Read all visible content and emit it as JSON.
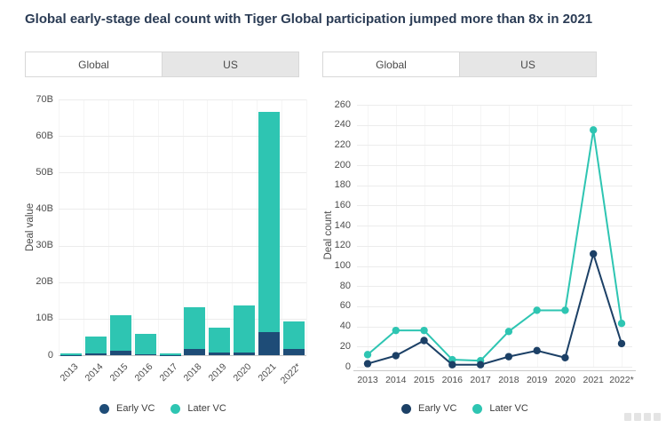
{
  "title": "Global early-stage deal count with Tiger Global participation jumped more than 8x in 2021",
  "tabs": {
    "options": [
      "Global",
      "US"
    ],
    "selected": "Global"
  },
  "legend": {
    "early_label": "Early VC",
    "later_label": "Later VC"
  },
  "colors": {
    "early_vc": "#1E4C77",
    "early_vc_line": "#1C4066",
    "later_vc": "#2EC5B2",
    "title_text": "#2B3C55",
    "axis_text": "#4D4D4D",
    "grid_line": "#ECECEC",
    "axis_line": "#C8C8C8",
    "inactive_tab_bg": "#E6E6E6",
    "tab_border": "#D8D8D8"
  },
  "chart_data": [
    {
      "type": "bar",
      "stacked": true,
      "tab_selected": "Global",
      "ylabel": "Deal value",
      "ylim": [
        0,
        70
      ],
      "ytick_labels": [
        "0",
        "10B",
        "20B",
        "30B",
        "40B",
        "50B",
        "60B",
        "70B"
      ],
      "categories": [
        "2013",
        "2014",
        "2015",
        "2016",
        "2017",
        "2018",
        "2019",
        "2020",
        "2021",
        "2022*"
      ],
      "series": [
        {
          "name": "Early VC",
          "color_key": "early_vc",
          "values": [
            0.1,
            0.4,
            1.1,
            0.2,
            0.1,
            1.7,
            0.7,
            0.7,
            6.2,
            1.7
          ]
        },
        {
          "name": "Later VC",
          "color_key": "later_vc",
          "values": [
            0.4,
            4.6,
            9.9,
            5.6,
            0.5,
            11.5,
            6.9,
            12.8,
            60.3,
            7.5
          ]
        }
      ],
      "grid": true,
      "legend_entries": [
        "Early VC",
        "Later VC"
      ],
      "legend_position": "bottom"
    },
    {
      "type": "line",
      "tab_selected": "Global",
      "ylabel": "Deal count",
      "ylim": [
        0,
        260
      ],
      "ytick_step": 20,
      "categories": [
        "2013",
        "2014",
        "2015",
        "2016",
        "2017",
        "2018",
        "2019",
        "2020",
        "2021",
        "2022*"
      ],
      "series": [
        {
          "name": "Early VC",
          "color_key": "early_vc_line",
          "values": [
            3,
            11,
            26,
            2,
            2,
            10,
            16,
            9,
            112,
            23
          ]
        },
        {
          "name": "Later VC",
          "color_key": "later_vc",
          "values": [
            12,
            36,
            36,
            7,
            6,
            35,
            56,
            56,
            235,
            43
          ]
        }
      ],
      "grid": true,
      "legend_entries": [
        "Early VC",
        "Later VC"
      ],
      "legend_position": "bottom"
    }
  ]
}
